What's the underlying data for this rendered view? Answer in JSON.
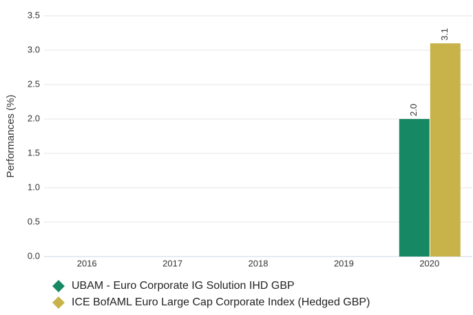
{
  "chart_data": {
    "type": "bar",
    "y_label": "Performances (%)",
    "categories": [
      "2016",
      "2017",
      "2018",
      "2019",
      "2020"
    ],
    "series": [
      {
        "name": "UBAM - Euro Corporate IG Solution IHD GBP",
        "color": "#178864",
        "values": [
          null,
          null,
          null,
          null,
          2.0
        ],
        "value_labels": [
          null,
          null,
          null,
          null,
          "2.0"
        ]
      },
      {
        "name": "ICE BofAML Euro Large Cap Corporate Index (Hedged GBP)",
        "color": "#c8b34a",
        "values": [
          null,
          null,
          null,
          null,
          3.1
        ],
        "value_labels": [
          null,
          null,
          null,
          null,
          "3.1"
        ]
      }
    ],
    "ylim": [
      0,
      3.5
    ],
    "yticks": [
      {
        "value": 0,
        "label": "0.0"
      },
      {
        "value": 0.5,
        "label": "0.5"
      },
      {
        "value": 1,
        "label": "1.0"
      },
      {
        "value": 1.5,
        "label": "1.5"
      },
      {
        "value": 2,
        "label": "2.0"
      },
      {
        "value": 2.5,
        "label": "2.5"
      },
      {
        "value": 3,
        "label": "3.0"
      },
      {
        "value": 3.5,
        "label": "3.5"
      }
    ],
    "grid": true
  }
}
